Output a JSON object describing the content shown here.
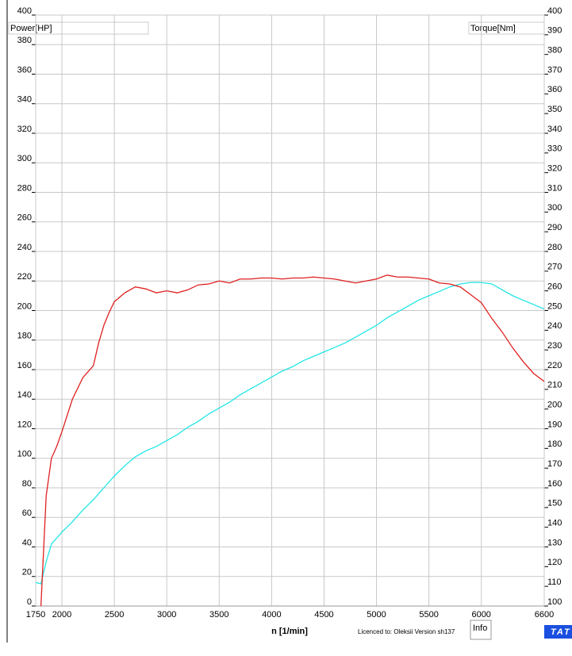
{
  "chart_data": {
    "type": "line",
    "xlabel": "n  [1/min]",
    "ylabel": "Power[HP]",
    "y2label": "Torque[Nm]",
    "annotations": [
      "Licenced to: Oleksii   Version sh137",
      "Info",
      "TAT"
    ],
    "xlim": [
      1750,
      6600
    ],
    "xticks": [
      1750,
      2000,
      2500,
      3000,
      3500,
      4000,
      4500,
      5000,
      5500,
      6000,
      6600
    ],
    "ylim": [
      0,
      400
    ],
    "yticks": [
      0,
      20,
      40,
      60,
      80,
      100,
      120,
      140,
      160,
      180,
      200,
      220,
      240,
      260,
      280,
      300,
      320,
      340,
      360,
      380,
      400
    ],
    "y2lim": [
      100,
      400
    ],
    "y2ticks": [
      100,
      110,
      120,
      130,
      140,
      150,
      160,
      170,
      180,
      190,
      200,
      210,
      220,
      230,
      240,
      250,
      260,
      270,
      280,
      290,
      300,
      310,
      320,
      330,
      340,
      350,
      360,
      370,
      380,
      390,
      400
    ],
    "grid": true,
    "series": [
      {
        "color": "#22e6e6",
        "x": [
          1750,
          1800,
          1850,
          1900,
          2000,
          2100,
          2200,
          2300,
          2400,
          2500,
          2600,
          2700,
          2800,
          2900,
          3000,
          3100,
          3200,
          3300,
          3400,
          3500,
          3600,
          3700,
          3800,
          3900,
          4000,
          4100,
          4200,
          4300,
          4400,
          4500,
          4600,
          4700,
          4800,
          4900,
          5000,
          5100,
          5200,
          5300,
          5400,
          5500,
          5600,
          5700,
          5800,
          5900,
          6000,
          6100,
          6200,
          6300,
          6400,
          6500,
          6600
        ],
        "values": [
          16,
          15,
          30,
          42,
          50,
          57,
          65,
          72,
          80,
          88,
          95,
          101,
          105,
          108,
          112,
          116,
          121,
          125,
          130,
          134,
          138,
          143,
          147,
          151,
          155,
          159,
          162,
          166,
          169,
          172,
          175,
          178,
          182,
          186,
          190,
          195,
          199,
          203,
          207,
          210,
          213,
          216,
          218,
          219,
          219,
          218,
          214,
          210,
          207,
          204,
          201
        ]
      },
      {
        "color": "#e02020",
        "axis": "y2",
        "x": [
          1800,
          1850,
          1900,
          1950,
          2000,
          2100,
          2200,
          2300,
          2350,
          2400,
          2450,
          2500,
          2600,
          2700,
          2800,
          2900,
          3000,
          3100,
          3200,
          3300,
          3400,
          3500,
          3600,
          3700,
          3800,
          3900,
          4000,
          4100,
          4200,
          4300,
          4400,
          4500,
          4600,
          4700,
          4800,
          4900,
          5000,
          5100,
          5200,
          5300,
          5400,
          5500,
          5600,
          5700,
          5800,
          5900,
          6000,
          6100,
          6200,
          6300,
          6400,
          6500,
          6600
        ],
        "values": [
          100,
          156,
          175,
          181,
          188.5,
          205,
          216,
          222,
          233.5,
          242.5,
          249,
          254.5,
          259,
          262,
          261,
          259,
          260,
          259,
          260.5,
          263,
          263.5,
          265,
          264,
          266,
          266,
          266.5,
          266.5,
          266,
          266.5,
          266.5,
          267,
          266.5,
          266,
          265,
          264,
          265,
          266,
          268,
          267,
          267,
          266.5,
          266,
          264,
          263.5,
          262,
          258,
          254,
          246,
          239,
          231,
          224,
          218,
          214
        ]
      }
    ]
  }
}
